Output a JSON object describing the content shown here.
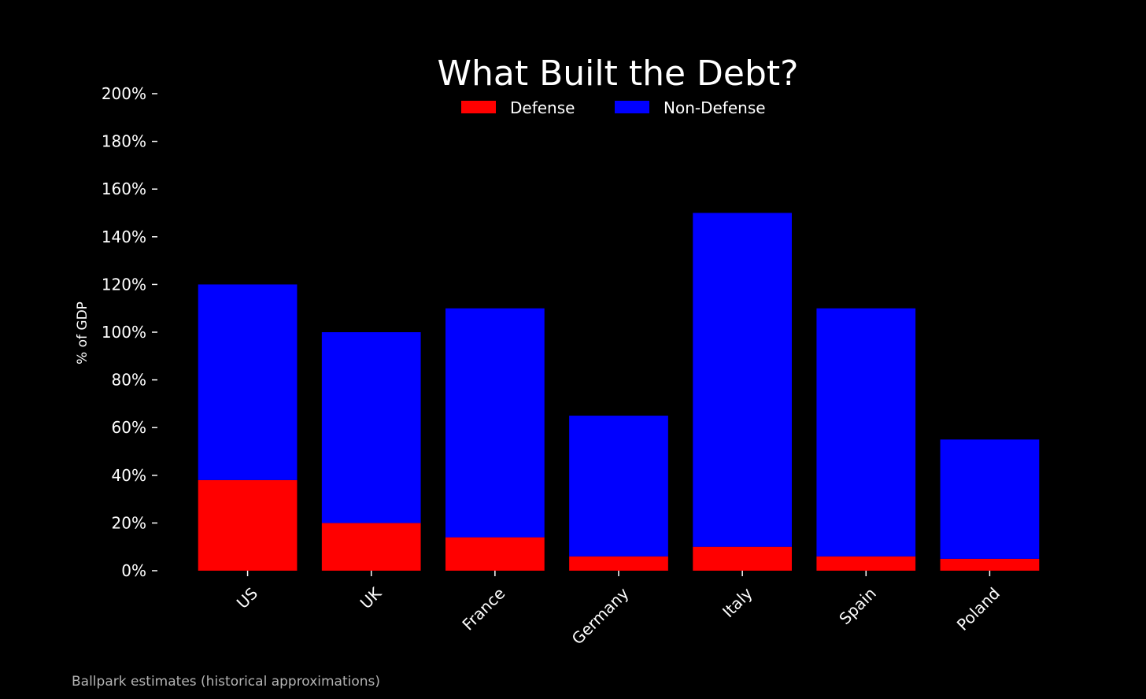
{
  "chart_data": {
    "type": "bar",
    "stacked": true,
    "title": "What Built the Debt?",
    "ylabel": "% of GDP",
    "xlabel": "",
    "ylim": [
      0,
      200
    ],
    "yticks": [
      0,
      20,
      40,
      60,
      80,
      100,
      120,
      140,
      160,
      180,
      200
    ],
    "ytick_suffix": "%",
    "categories": [
      "US",
      "UK",
      "France",
      "Germany",
      "Italy",
      "Spain",
      "Poland"
    ],
    "series": [
      {
        "name": "Defense",
        "color": "#ff0000",
        "values": [
          38,
          20,
          14,
          6,
          10,
          6,
          5
        ]
      },
      {
        "name": "Non-Defense",
        "color": "#0000ff",
        "values": [
          82,
          80,
          96,
          59,
          140,
          104,
          50
        ]
      }
    ],
    "legend": "top-center",
    "grid": false,
    "note": "Ballpark estimates (historical approximations)",
    "background": "#000000"
  }
}
